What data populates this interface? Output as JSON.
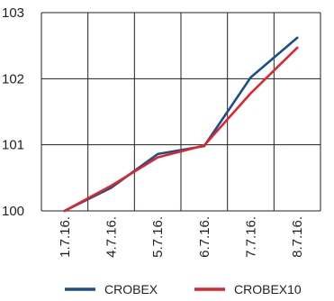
{
  "chart_data": {
    "type": "line",
    "categories": [
      "1.7.16.",
      "4.7.16.",
      "5.7.16.",
      "6.7.16.",
      "7.7.16.",
      "8.7.16."
    ],
    "series": [
      {
        "name": "CROBEX",
        "color": "#1a4f8b",
        "values": [
          100.0,
          100.35,
          100.86,
          100.98,
          102.02,
          102.62
        ]
      },
      {
        "name": "CROBEX10",
        "color": "#e0242d",
        "values": [
          100.0,
          100.38,
          100.81,
          100.99,
          101.78,
          102.47
        ]
      }
    ],
    "yticks": [
      100,
      101,
      102,
      103
    ],
    "ylim": [
      100,
      103
    ],
    "grid": true,
    "legend_position": "bottom"
  }
}
